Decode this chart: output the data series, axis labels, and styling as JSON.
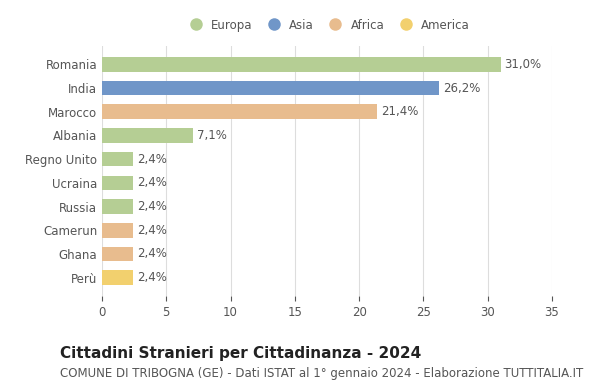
{
  "countries": [
    "Romania",
    "India",
    "Marocco",
    "Albania",
    "Regno Unito",
    "Ucraina",
    "Russia",
    "Camerun",
    "Ghana",
    "Perù"
  ],
  "values": [
    31.0,
    26.2,
    21.4,
    7.1,
    2.4,
    2.4,
    2.4,
    2.4,
    2.4,
    2.4
  ],
  "labels": [
    "31,0%",
    "26,2%",
    "21,4%",
    "7,1%",
    "2,4%",
    "2,4%",
    "2,4%",
    "2,4%",
    "2,4%",
    "2,4%"
  ],
  "colors": [
    "#b5ce94",
    "#7096c8",
    "#e8bc8e",
    "#b5ce94",
    "#b5ce94",
    "#b5ce94",
    "#b5ce94",
    "#e8bc8e",
    "#e8bc8e",
    "#f2d06e"
  ],
  "legend_labels": [
    "Europa",
    "Asia",
    "Africa",
    "America"
  ],
  "legend_colors": [
    "#b5ce94",
    "#7096c8",
    "#e8bc8e",
    "#f2d06e"
  ],
  "xlim": [
    0,
    35
  ],
  "xticks": [
    0,
    5,
    10,
    15,
    20,
    25,
    30,
    35
  ],
  "title": "Cittadini Stranieri per Cittadinanza - 2024",
  "subtitle": "COMUNE DI TRIBOGNA (GE) - Dati ISTAT al 1° gennaio 2024 - Elaborazione TUTTITALIA.IT",
  "bg_color": "#ffffff",
  "bar_height": 0.62,
  "label_fontsize": 8.5,
  "title_fontsize": 11,
  "subtitle_fontsize": 8.5,
  "text_color": "#555555",
  "title_color": "#222222"
}
